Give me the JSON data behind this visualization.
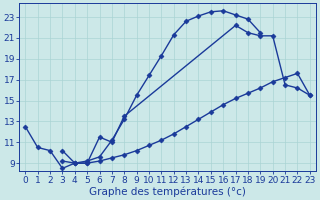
{
  "bg_color": "#cce8e8",
  "line_color": "#1a3a9a",
  "marker": "D",
  "markersize": 2.5,
  "linewidth": 1.0,
  "xlabel": "Graphe des températures (°c)",
  "xlabel_fontsize": 7.5,
  "yticks": [
    9,
    11,
    13,
    15,
    17,
    19,
    21,
    23
  ],
  "xticks": [
    0,
    1,
    2,
    3,
    4,
    5,
    6,
    7,
    8,
    9,
    10,
    11,
    12,
    13,
    14,
    15,
    16,
    17,
    18,
    19,
    20,
    21,
    22,
    23
  ],
  "ylim": [
    8.2,
    24.3
  ],
  "xlim": [
    -0.5,
    23.5
  ],
  "grid_color": "#aad4d4",
  "tick_fontsize": 6.5,
  "line1_x": [
    0,
    1,
    2,
    3,
    4,
    5,
    6,
    7,
    8,
    9,
    10,
    11,
    12,
    13,
    14,
    15,
    16,
    17,
    18,
    19
  ],
  "line1_y": [
    12.5,
    10.5,
    10.2,
    8.5,
    9.0,
    9.2,
    9.6,
    11.2,
    13.2,
    15.5,
    17.4,
    19.3,
    21.3,
    22.6,
    23.1,
    23.5,
    23.6,
    23.2,
    22.8,
    21.5
  ],
  "line2_x": [
    3,
    4,
    5,
    6,
    7,
    8,
    17,
    18,
    19,
    20,
    21,
    22,
    23
  ],
  "line2_y": [
    10.2,
    9.0,
    9.0,
    11.5,
    11.0,
    13.5,
    22.2,
    21.5,
    21.2,
    21.2,
    16.5,
    16.2,
    15.5
  ],
  "line3_x": [
    3,
    4,
    5,
    6,
    7,
    8,
    9,
    10,
    11,
    12,
    13,
    14,
    15,
    16,
    17,
    18,
    19,
    20,
    21,
    22,
    23
  ],
  "line3_y": [
    9.2,
    9.0,
    9.0,
    9.2,
    9.5,
    9.8,
    10.2,
    10.7,
    11.2,
    11.8,
    12.5,
    13.2,
    13.9,
    14.6,
    15.2,
    15.7,
    16.2,
    16.8,
    17.2,
    17.6,
    15.5
  ]
}
